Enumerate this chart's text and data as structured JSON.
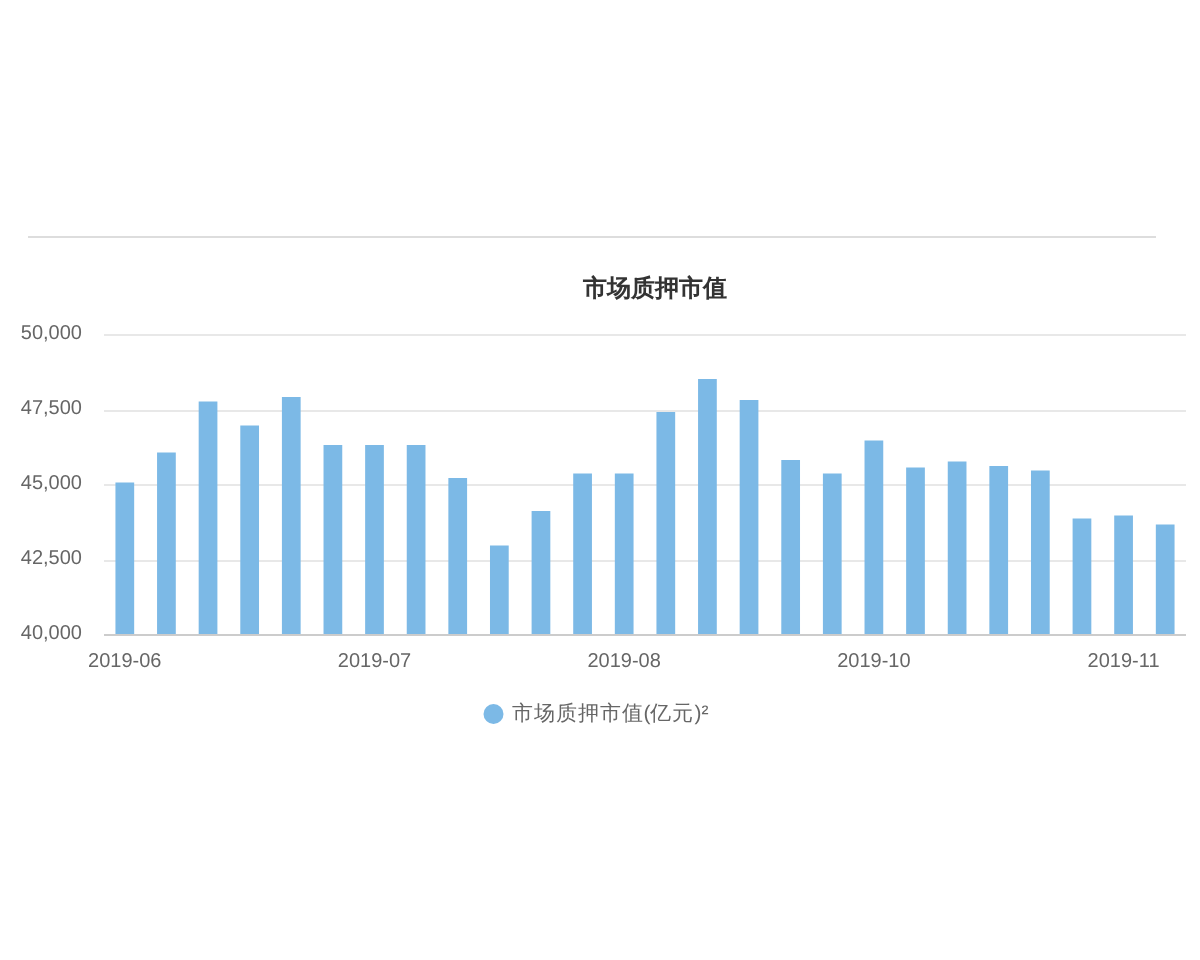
{
  "chart_data": {
    "type": "bar",
    "title": "市场质押市值",
    "categories": [
      "2019-06",
      null,
      null,
      null,
      null,
      null,
      "2019-07",
      null,
      null,
      null,
      null,
      null,
      "2019-08",
      null,
      null,
      null,
      null,
      null,
      "2019-10",
      null,
      null,
      null,
      null,
      null,
      "2019-11",
      null
    ],
    "series": [
      {
        "name": "市场质押市值(亿元)²",
        "color": "#7cb9e6",
        "values": [
          45050,
          46050,
          47750,
          46950,
          47900,
          46300,
          46300,
          46300,
          45200,
          42950,
          44100,
          45350,
          45350,
          47400,
          48500,
          47800,
          45800,
          45350,
          46450,
          45550,
          45750,
          45600,
          45450,
          43850,
          43950,
          43650
        ]
      }
    ],
    "ylim": [
      40000,
      50000
    ],
    "yticks": [
      {
        "value": 40000,
        "label": "40,000"
      },
      {
        "value": 42500,
        "label": "42,500"
      },
      {
        "value": 45000,
        "label": "45,000"
      },
      {
        "value": 47500,
        "label": "47,500"
      },
      {
        "value": 50000,
        "label": "50,000"
      }
    ],
    "grid": "y",
    "legend": "bottom"
  }
}
